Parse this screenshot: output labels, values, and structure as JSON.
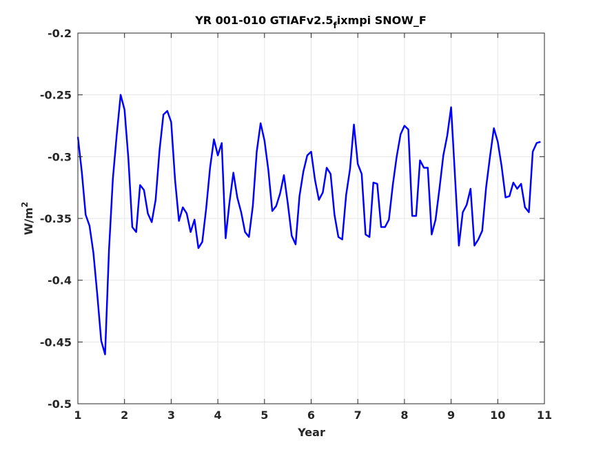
{
  "chart_data": {
    "type": "line",
    "title": {
      "main": "YR 001-010 GTIAFv2.5",
      "subscript": "f",
      "rest": "ixmpi SNOW_F"
    },
    "xlabel": "Year",
    "ylabel": {
      "base": "W/m",
      "superscript": "2"
    },
    "xlim": [
      1,
      11
    ],
    "ylim": [
      -0.5,
      -0.2
    ],
    "xticks": [
      1,
      2,
      3,
      4,
      5,
      6,
      7,
      8,
      9,
      10,
      11
    ],
    "xtick_labels": [
      "1",
      "2",
      "3",
      "4",
      "5",
      "6",
      "7",
      "8",
      "9",
      "10",
      "11"
    ],
    "yticks": [
      -0.5,
      -0.45,
      -0.4,
      -0.35,
      -0.3,
      -0.25,
      -0.2
    ],
    "ytick_labels": [
      "-0.5",
      "-0.45",
      "-0.4",
      "-0.35",
      "-0.3",
      "-0.25",
      "-0.2"
    ],
    "grid": true,
    "line_color": "#0000ff",
    "series": [
      {
        "x_start": 1.0,
        "x_step": 0.0833333,
        "values": [
          -0.284,
          -0.312,
          -0.347,
          -0.356,
          -0.378,
          -0.412,
          -0.449,
          -0.46,
          -0.376,
          -0.318,
          -0.282,
          -0.25,
          -0.262,
          -0.302,
          -0.357,
          -0.361,
          -0.323,
          -0.327,
          -0.346,
          -0.353,
          -0.335,
          -0.295,
          -0.266,
          -0.263,
          -0.272,
          -0.319,
          -0.352,
          -0.341,
          -0.346,
          -0.361,
          -0.351,
          -0.374,
          -0.369,
          -0.342,
          -0.309,
          -0.286,
          -0.299,
          -0.289,
          -0.366,
          -0.337,
          -0.313,
          -0.333,
          -0.345,
          -0.361,
          -0.365,
          -0.34,
          -0.296,
          -0.273,
          -0.287,
          -0.311,
          -0.344,
          -0.34,
          -0.33,
          -0.315,
          -0.338,
          -0.364,
          -0.371,
          -0.332,
          -0.312,
          -0.299,
          -0.296,
          -0.319,
          -0.335,
          -0.329,
          -0.309,
          -0.314,
          -0.347,
          -0.365,
          -0.367,
          -0.331,
          -0.31,
          -0.274,
          -0.306,
          -0.314,
          -0.363,
          -0.365,
          -0.321,
          -0.322,
          -0.357,
          -0.357,
          -0.351,
          -0.323,
          -0.3,
          -0.282,
          -0.275,
          -0.278,
          -0.348,
          -0.348,
          -0.303,
          -0.309,
          -0.309,
          -0.363,
          -0.351,
          -0.326,
          -0.299,
          -0.283,
          -0.26,
          -0.316,
          -0.372,
          -0.345,
          -0.339,
          -0.326,
          -0.372,
          -0.367,
          -0.36,
          -0.325,
          -0.3,
          -0.277,
          -0.288,
          -0.308,
          -0.333,
          -0.332,
          -0.321,
          -0.326,
          -0.322,
          -0.341,
          -0.345,
          -0.296,
          -0.289,
          -0.288
        ]
      }
    ]
  }
}
